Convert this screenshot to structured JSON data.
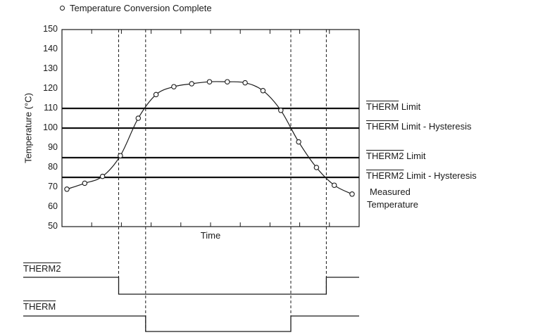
{
  "legend": {
    "marker_icon": "open-circle-marker",
    "label": "Temperature Conversion Complete"
  },
  "chart_data": {
    "type": "line",
    "title": "",
    "xlabel": "Time",
    "ylabel": "Temperature (°C)",
    "ylim": [
      50,
      150
    ],
    "y_ticks": [
      150,
      140,
      130,
      120,
      110,
      100,
      90,
      80,
      70,
      60,
      50
    ],
    "x_tick_labels": "none (unlabeled time axis, uniform spacing)",
    "grid": "plot frame box with short interior tick marks on top and bottom edges",
    "series": [
      {
        "name": "Measured Temperature",
        "marker": "open-circle (each marker = temperature conversion complete)",
        "values": [
          69,
          72,
          75.5,
          86,
          105,
          117,
          121,
          122.5,
          123.5,
          123.5,
          123,
          119,
          109,
          93,
          80,
          71,
          66.5
        ]
      }
    ],
    "limit_lines": [
      {
        "label_bar": "THERM",
        "label_rest": " Limit",
        "value": 110
      },
      {
        "label_bar": "THERM",
        "label_rest": " Limit - Hysteresis",
        "value": 100
      },
      {
        "label_bar": "THERM2",
        "label_rest": " Limit",
        "value": 85
      },
      {
        "label_bar": "THERM2",
        "label_rest": " Limit - Hysteresis",
        "value": 75
      }
    ]
  },
  "signals": [
    {
      "label": "THERM2",
      "active_low": true,
      "falls_when_above": 85,
      "rises_when_below": 75
    },
    {
      "label": "THERM",
      "active_low": true,
      "falls_when_above": 110,
      "rises_when_below": 100
    }
  ],
  "colors": {
    "ink": "#1a1a1a",
    "background": "#ffffff"
  }
}
